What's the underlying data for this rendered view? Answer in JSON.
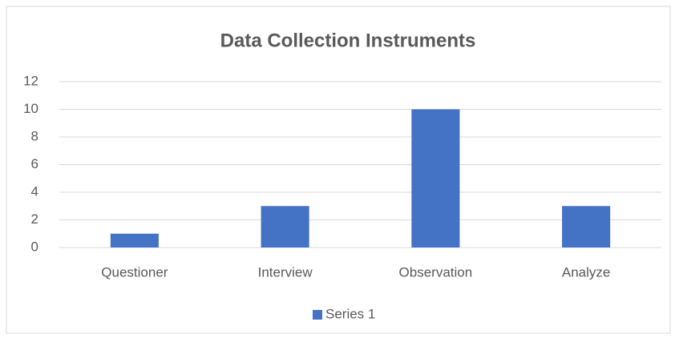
{
  "chart_data": {
    "type": "bar",
    "title": "Data Collection Instruments",
    "categories": [
      "Questioner",
      "Interview",
      "Observation",
      "Analyze"
    ],
    "series": [
      {
        "name": "Series 1",
        "color": "#4472c4",
        "values": [
          1,
          3,
          10,
          3
        ]
      }
    ],
    "ylim": [
      0,
      12
    ],
    "yticks": [
      0,
      2,
      4,
      6,
      8,
      10,
      12
    ],
    "grid": true,
    "legend": "bottom"
  }
}
